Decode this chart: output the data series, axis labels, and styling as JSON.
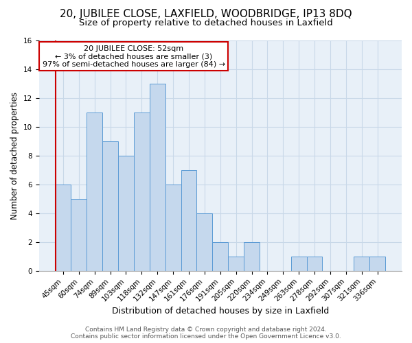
{
  "title1": "20, JUBILEE CLOSE, LAXFIELD, WOODBRIDGE, IP13 8DQ",
  "title2": "Size of property relative to detached houses in Laxfield",
  "xlabel": "Distribution of detached houses by size in Laxfield",
  "ylabel": "Number of detached properties",
  "footer1": "Contains HM Land Registry data © Crown copyright and database right 2024.",
  "footer2": "Contains public sector information licensed under the Open Government Licence v3.0.",
  "annotation_title": "20 JUBILEE CLOSE: 52sqm",
  "annotation_line1": "← 3% of detached houses are smaller (3)",
  "annotation_line2": "97% of semi-detached houses are larger (84) →",
  "bin_labels": [
    "45sqm",
    "60sqm",
    "74sqm",
    "89sqm",
    "103sqm",
    "118sqm",
    "132sqm",
    "147sqm",
    "161sqm",
    "176sqm",
    "191sqm",
    "205sqm",
    "220sqm",
    "234sqm",
    "249sqm",
    "263sqm",
    "278sqm",
    "292sqm",
    "307sqm",
    "321sqm",
    "336sqm"
  ],
  "bin_values": [
    6,
    5,
    11,
    9,
    8,
    11,
    13,
    6,
    7,
    4,
    2,
    1,
    2,
    0,
    0,
    1,
    1,
    0,
    0,
    1,
    1
  ],
  "bar_color": "#c5d8ed",
  "bar_edge_color": "#5b9bd5",
  "highlight_color": "#cc0000",
  "ylim": [
    0,
    16
  ],
  "yticks": [
    0,
    2,
    4,
    6,
    8,
    10,
    12,
    14,
    16
  ],
  "annotation_box_color": "#ffffff",
  "annotation_box_edge": "#cc0000",
  "title1_fontsize": 11,
  "title2_fontsize": 9.5,
  "xlabel_fontsize": 9,
  "ylabel_fontsize": 8.5,
  "tick_fontsize": 7.5,
  "annotation_fontsize": 8,
  "footer_fontsize": 6.5
}
